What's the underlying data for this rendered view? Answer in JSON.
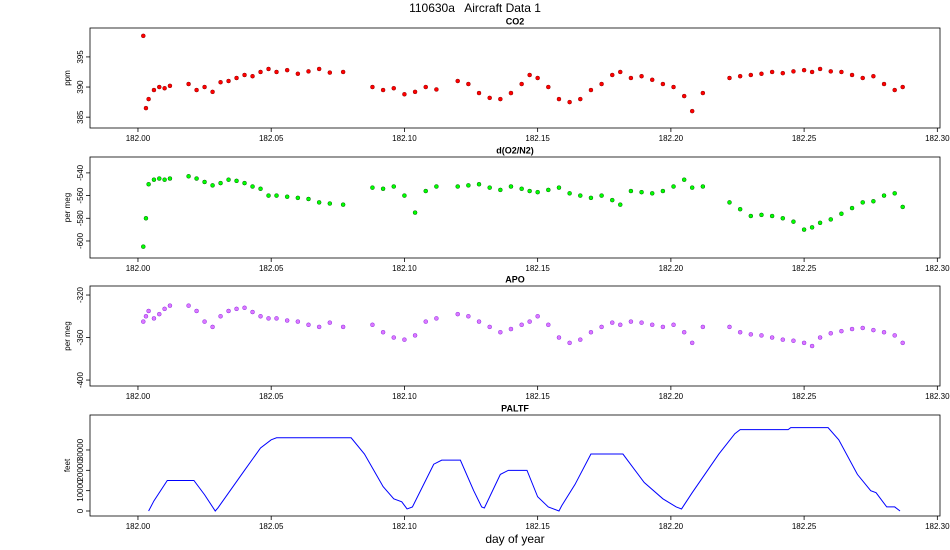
{
  "title": "110630a   Aircraft Data 1",
  "xlabel": "day of year",
  "chart_data": [
    {
      "type": "scatter",
      "title": "CO2",
      "ylabel": "ppm",
      "color": "#ff0000",
      "edge": "#8b0000",
      "xlim": [
        181.982,
        182.301
      ],
      "xticks": [
        {
          "value": 182.0,
          "label": "182.00"
        },
        {
          "value": 182.05,
          "label": "182.05"
        },
        {
          "value": 182.1,
          "label": "182.10"
        },
        {
          "value": 182.15,
          "label": "182.15"
        },
        {
          "value": 182.2,
          "label": "182.20"
        },
        {
          "value": 182.25,
          "label": "182.25"
        },
        {
          "value": 182.3,
          "label": "182.30"
        }
      ],
      "ylim": [
        383.2,
        399.8
      ],
      "yticks": [
        385,
        390,
        395
      ],
      "x": [
        182.002,
        182.003,
        182.004,
        182.006,
        182.008,
        182.01,
        182.012,
        182.019,
        182.022,
        182.025,
        182.028,
        182.031,
        182.034,
        182.037,
        182.04,
        182.043,
        182.046,
        182.049,
        182.052,
        182.056,
        182.06,
        182.064,
        182.068,
        182.072,
        182.077,
        182.088,
        182.092,
        182.096,
        182.1,
        182.104,
        182.108,
        182.112,
        182.12,
        182.124,
        182.128,
        182.132,
        182.136,
        182.14,
        182.144,
        182.147,
        182.15,
        182.154,
        182.158,
        182.162,
        182.166,
        182.17,
        182.174,
        182.178,
        182.181,
        182.185,
        182.189,
        182.193,
        182.197,
        182.201,
        182.205,
        182.208,
        182.212,
        182.222,
        182.226,
        182.23,
        182.234,
        182.238,
        182.242,
        182.246,
        182.25,
        182.253,
        182.256,
        182.26,
        182.264,
        182.268,
        182.272,
        182.276,
        182.28,
        182.284,
        182.287
      ],
      "values": [
        398.5,
        386.5,
        388,
        389.5,
        390,
        389.8,
        390.2,
        390.5,
        389.5,
        390,
        389.2,
        390.8,
        391,
        391.5,
        392,
        391.8,
        392.5,
        393,
        392.5,
        392.8,
        392.2,
        392.6,
        393,
        392.4,
        392.5,
        390,
        389.5,
        389.8,
        388.8,
        389.2,
        390,
        389.6,
        391,
        390.5,
        389,
        388.2,
        388,
        389,
        390.5,
        392,
        391.5,
        390,
        388,
        387.5,
        388,
        389.5,
        390.5,
        392,
        392.5,
        391.5,
        391.8,
        391.2,
        390.5,
        390,
        388.5,
        386,
        389,
        391.5,
        391.8,
        392,
        392.2,
        392.5,
        392.3,
        392.6,
        392.8,
        392.5,
        393,
        392.6,
        392.5,
        392,
        391.5,
        391.8,
        390.5,
        389.5,
        390
      ]
    },
    {
      "type": "scatter",
      "title": "d(O2/N2)",
      "ylabel": "per meg",
      "color": "#00ff00",
      "edge": "#006400",
      "xlim": [
        181.982,
        182.301
      ],
      "xticks": [
        {
          "value": 182.0,
          "label": "182.00"
        },
        {
          "value": 182.05,
          "label": "182.05"
        },
        {
          "value": 182.1,
          "label": "182.10"
        },
        {
          "value": 182.15,
          "label": "182.15"
        },
        {
          "value": 182.2,
          "label": "182.20"
        },
        {
          "value": 182.25,
          "label": "182.25"
        },
        {
          "value": 182.3,
          "label": "182.30"
        }
      ],
      "ylim": [
        -615,
        -526
      ],
      "yticks": [
        -540,
        -560,
        -580,
        -600
      ],
      "x": [
        182.002,
        182.003,
        182.004,
        182.006,
        182.008,
        182.01,
        182.012,
        182.019,
        182.022,
        182.025,
        182.028,
        182.031,
        182.034,
        182.037,
        182.04,
        182.043,
        182.046,
        182.049,
        182.052,
        182.056,
        182.06,
        182.064,
        182.068,
        182.072,
        182.077,
        182.088,
        182.092,
        182.096,
        182.1,
        182.104,
        182.108,
        182.112,
        182.12,
        182.124,
        182.128,
        182.132,
        182.136,
        182.14,
        182.144,
        182.147,
        182.15,
        182.154,
        182.158,
        182.162,
        182.166,
        182.17,
        182.174,
        182.178,
        182.181,
        182.185,
        182.189,
        182.193,
        182.197,
        182.201,
        182.205,
        182.208,
        182.212,
        182.222,
        182.226,
        182.23,
        182.234,
        182.238,
        182.242,
        182.246,
        182.25,
        182.253,
        182.256,
        182.26,
        182.264,
        182.268,
        182.272,
        182.276,
        182.28,
        182.284,
        182.287
      ],
      "values": [
        -605,
        -580,
        -550,
        -546,
        -545,
        -546,
        -545,
        -543,
        -545,
        -548,
        -551,
        -549,
        -546,
        -547,
        -549,
        -552,
        -554,
        -560,
        -560,
        -561,
        -562,
        -563,
        -566,
        -567,
        -568,
        -553,
        -554,
        -552,
        -560,
        -575,
        -556,
        -552,
        -552,
        -551,
        -550,
        -553,
        -555,
        -552,
        -554,
        -556,
        -557,
        -555,
        -553,
        -558,
        -560,
        -562,
        -560,
        -564,
        -568,
        -556,
        -557,
        -558,
        -556,
        -552,
        -546,
        -553,
        -552,
        -566,
        -572,
        -578,
        -577,
        -578,
        -580,
        -583,
        -590,
        -588,
        -584,
        -581,
        -576,
        -571,
        -566,
        -565,
        -560,
        -558,
        -570
      ]
    },
    {
      "type": "scatter",
      "title": "APO",
      "ylabel": "per meg",
      "color": "#dd77ff",
      "edge": "#8a2be2",
      "xlim": [
        181.982,
        182.301
      ],
      "xticks": [
        {
          "value": 182.0,
          "label": "182.00"
        },
        {
          "value": 182.05,
          "label": "182.05"
        },
        {
          "value": 182.1,
          "label": "182.10"
        },
        {
          "value": 182.15,
          "label": "182.15"
        },
        {
          "value": 182.2,
          "label": "182.20"
        },
        {
          "value": 182.25,
          "label": "182.25"
        },
        {
          "value": 182.3,
          "label": "182.30"
        }
      ],
      "ylim": [
        -405.6,
        -311.5
      ],
      "yticks": [
        -320,
        -360,
        -400
      ],
      "x": [
        182.002,
        182.003,
        182.004,
        182.006,
        182.008,
        182.01,
        182.012,
        182.019,
        182.022,
        182.025,
        182.028,
        182.031,
        182.034,
        182.037,
        182.04,
        182.043,
        182.046,
        182.049,
        182.052,
        182.056,
        182.06,
        182.064,
        182.068,
        182.072,
        182.077,
        182.088,
        182.092,
        182.096,
        182.1,
        182.104,
        182.108,
        182.112,
        182.12,
        182.124,
        182.128,
        182.132,
        182.136,
        182.14,
        182.144,
        182.147,
        182.15,
        182.154,
        182.158,
        182.162,
        182.166,
        182.17,
        182.174,
        182.178,
        182.181,
        182.185,
        182.189,
        182.193,
        182.197,
        182.201,
        182.205,
        182.208,
        182.212,
        182.222,
        182.226,
        182.23,
        182.234,
        182.238,
        182.242,
        182.246,
        182.25,
        182.253,
        182.256,
        182.26,
        182.264,
        182.268,
        182.272,
        182.276,
        182.28,
        182.284,
        182.287
      ],
      "values": [
        -345,
        -340,
        -335,
        -342,
        -338,
        -333,
        -330,
        -330,
        -335,
        -345,
        -350,
        -340,
        -335,
        -333,
        -332,
        -336,
        -340,
        -342,
        -342,
        -344,
        -345,
        -348,
        -350,
        -346,
        -350,
        -348,
        -355,
        -360,
        -362,
        -358,
        -345,
        -342,
        -338,
        -340,
        -345,
        -350,
        -355,
        -352,
        -348,
        -345,
        -340,
        -348,
        -360,
        -365,
        -362,
        -355,
        -350,
        -346,
        -348,
        -345,
        -346,
        -348,
        -350,
        -348,
        -355,
        -365,
        -350,
        -350,
        -355,
        -357,
        -358,
        -360,
        -362,
        -363,
        -365,
        -368,
        -360,
        -356,
        -354,
        -352,
        -351,
        -353,
        -355,
        -358,
        -365
      ]
    },
    {
      "type": "line",
      "title": "PALTF",
      "ylabel": "feet",
      "color": "#0000ff",
      "xlim": [
        181.982,
        182.301
      ],
      "xticks": [
        {
          "value": 182.0,
          "label": "182.00"
        },
        {
          "value": 182.05,
          "label": "182.05"
        },
        {
          "value": 182.1,
          "label": "182.10"
        },
        {
          "value": 182.15,
          "label": "182.15"
        },
        {
          "value": 182.2,
          "label": "182.20"
        },
        {
          "value": 182.25,
          "label": "182.25"
        },
        {
          "value": 182.3,
          "label": "182.30"
        }
      ],
      "ylim": [
        -2460,
        47200
      ],
      "yticks": [
        0,
        10000,
        20000,
        30000
      ],
      "x": [
        182.004,
        182.006,
        182.011,
        182.021,
        182.025,
        182.029,
        182.03,
        182.04,
        182.046,
        182.05,
        182.052,
        182.08,
        182.085,
        182.092,
        182.096,
        182.099,
        182.101,
        182.103,
        182.111,
        182.114,
        182.121,
        182.126,
        182.129,
        182.13,
        182.136,
        182.139,
        182.146,
        182.15,
        182.154,
        182.158,
        182.159,
        182.164,
        182.17,
        182.182,
        182.19,
        182.197,
        182.202,
        182.204,
        182.208,
        182.218,
        182.224,
        182.226,
        182.244,
        182.245,
        182.259,
        182.263,
        182.27,
        182.275,
        182.277,
        182.281,
        182.284,
        182.286
      ],
      "values": [
        0,
        5000,
        15000,
        15000,
        8000,
        0,
        1500,
        20000,
        31000,
        35000,
        36000,
        36000,
        28000,
        12000,
        6000,
        4500,
        1000,
        2000,
        23000,
        25000,
        25000,
        10000,
        2000,
        1500,
        18000,
        20000,
        20000,
        7000,
        2000,
        0,
        2500,
        13000,
        28000,
        28000,
        14000,
        6000,
        2000,
        1000,
        9000,
        28000,
        38000,
        40000,
        40000,
        41000,
        41000,
        35000,
        18000,
        10000,
        9000,
        2000,
        2000,
        0
      ]
    }
  ]
}
